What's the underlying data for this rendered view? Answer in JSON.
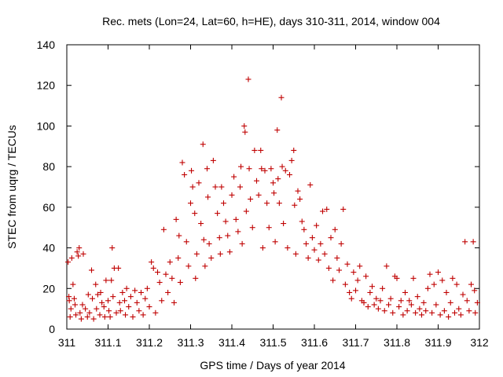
{
  "chart_data": {
    "type": "scatter",
    "title": "Rec. mets (Lon=24, Lat=60, h=HE), days 310-311, 2014, window 004",
    "xlabel": "GPS time / Days of year 2014",
    "ylabel": "STEC from uqrg / TECUs",
    "xlim": [
      311,
      312
    ],
    "ylim": [
      0,
      140
    ],
    "xticks": [
      "311",
      "311.1",
      "311.2",
      "311.3",
      "311.4",
      "311.5",
      "311.6",
      "311.7",
      "311.8",
      "311.9",
      "312"
    ],
    "yticks": [
      "0",
      "20",
      "40",
      "60",
      "80",
      "100",
      "120",
      "140"
    ],
    "grid": false,
    "legend": "none",
    "marker": "plus",
    "color": "#c00000",
    "series": [
      {
        "points": [
          [
            311.003,
            33
          ],
          [
            311.005,
            16
          ],
          [
            311.006,
            14
          ],
          [
            311.008,
            6
          ],
          [
            311.01,
            10
          ],
          [
            311.012,
            35
          ],
          [
            311.015,
            22
          ],
          [
            311.018,
            15
          ],
          [
            311.02,
            12
          ],
          [
            311.022,
            7
          ],
          [
            311.025,
            38
          ],
          [
            311.028,
            36
          ],
          [
            311.03,
            40
          ],
          [
            311.032,
            8
          ],
          [
            311.035,
            5
          ],
          [
            311.038,
            12
          ],
          [
            311.04,
            37
          ],
          [
            311.045,
            10
          ],
          [
            311.05,
            6
          ],
          [
            311.052,
            17
          ],
          [
            311.055,
            8
          ],
          [
            311.06,
            29
          ],
          [
            311.062,
            15
          ],
          [
            311.065,
            5
          ],
          [
            311.07,
            22
          ],
          [
            311.072,
            10
          ],
          [
            311.075,
            17
          ],
          [
            311.08,
            7
          ],
          [
            311.082,
            18
          ],
          [
            311.085,
            13
          ],
          [
            311.09,
            11
          ],
          [
            311.092,
            6
          ],
          [
            311.095,
            24
          ],
          [
            311.1,
            14
          ],
          [
            311.102,
            9
          ],
          [
            311.105,
            6
          ],
          [
            311.108,
            24
          ],
          [
            311.11,
            40
          ],
          [
            311.112,
            16
          ],
          [
            311.115,
            30
          ],
          [
            311.12,
            8
          ],
          [
            311.125,
            30
          ],
          [
            311.128,
            13
          ],
          [
            311.13,
            9
          ],
          [
            311.135,
            18
          ],
          [
            311.14,
            14
          ],
          [
            311.142,
            7
          ],
          [
            311.145,
            20
          ],
          [
            311.15,
            11
          ],
          [
            311.155,
            16
          ],
          [
            311.16,
            6
          ],
          [
            311.165,
            19
          ],
          [
            311.17,
            13
          ],
          [
            311.175,
            9
          ],
          [
            311.18,
            18
          ],
          [
            311.185,
            7
          ],
          [
            311.19,
            15
          ],
          [
            311.195,
            20
          ],
          [
            311.2,
            11
          ],
          [
            311.205,
            33
          ],
          [
            311.21,
            30
          ],
          [
            311.215,
            8
          ],
          [
            311.22,
            28
          ],
          [
            311.225,
            23
          ],
          [
            311.23,
            14
          ],
          [
            311.235,
            49
          ],
          [
            311.24,
            27
          ],
          [
            311.245,
            18
          ],
          [
            311.25,
            33
          ],
          [
            311.255,
            25
          ],
          [
            311.26,
            13
          ],
          [
            311.265,
            54
          ],
          [
            311.27,
            35
          ],
          [
            311.272,
            46
          ],
          [
            311.275,
            23
          ],
          [
            311.28,
            82
          ],
          [
            311.285,
            76
          ],
          [
            311.29,
            43
          ],
          [
            311.295,
            31
          ],
          [
            311.3,
            62
          ],
          [
            311.302,
            78
          ],
          [
            311.305,
            70
          ],
          [
            311.31,
            57
          ],
          [
            311.312,
            25
          ],
          [
            311.315,
            37
          ],
          [
            311.32,
            72
          ],
          [
            311.325,
            52
          ],
          [
            311.33,
            91
          ],
          [
            311.332,
            44
          ],
          [
            311.335,
            31
          ],
          [
            311.34,
            79
          ],
          [
            311.342,
            65
          ],
          [
            311.345,
            42
          ],
          [
            311.35,
            35
          ],
          [
            311.355,
            83
          ],
          [
            311.36,
            70
          ],
          [
            311.365,
            57
          ],
          [
            311.37,
            45
          ],
          [
            311.372,
            37
          ],
          [
            311.375,
            70
          ],
          [
            311.38,
            62
          ],
          [
            311.385,
            53
          ],
          [
            311.39,
            46
          ],
          [
            311.395,
            38
          ],
          [
            311.4,
            66
          ],
          [
            311.405,
            75
          ],
          [
            311.41,
            54
          ],
          [
            311.415,
            48
          ],
          [
            311.42,
            70
          ],
          [
            311.422,
            80
          ],
          [
            311.425,
            42
          ],
          [
            311.43,
            100
          ],
          [
            311.432,
            97
          ],
          [
            311.435,
            58
          ],
          [
            311.44,
            123
          ],
          [
            311.442,
            79
          ],
          [
            311.445,
            64
          ],
          [
            311.45,
            50
          ],
          [
            311.455,
            88
          ],
          [
            311.46,
            73
          ],
          [
            311.465,
            66
          ],
          [
            311.47,
            88
          ],
          [
            311.472,
            79
          ],
          [
            311.475,
            40
          ],
          [
            311.48,
            78
          ],
          [
            311.485,
            62
          ],
          [
            311.49,
            50
          ],
          [
            311.495,
            79
          ],
          [
            311.5,
            72
          ],
          [
            311.502,
            67
          ],
          [
            311.505,
            43
          ],
          [
            311.51,
            98
          ],
          [
            311.512,
            74
          ],
          [
            311.515,
            62
          ],
          [
            311.52,
            114
          ],
          [
            311.522,
            80
          ],
          [
            311.525,
            52
          ],
          [
            311.53,
            78
          ],
          [
            311.535,
            40
          ],
          [
            311.54,
            76
          ],
          [
            311.545,
            83
          ],
          [
            311.55,
            88
          ],
          [
            311.552,
            61
          ],
          [
            311.555,
            37
          ],
          [
            311.56,
            68
          ],
          [
            311.565,
            64
          ],
          [
            311.57,
            53
          ],
          [
            311.575,
            49
          ],
          [
            311.58,
            42
          ],
          [
            311.585,
            35
          ],
          [
            311.59,
            71
          ],
          [
            311.595,
            45
          ],
          [
            311.6,
            39
          ],
          [
            311.605,
            51
          ],
          [
            311.61,
            34
          ],
          [
            311.615,
            42
          ],
          [
            311.62,
            58
          ],
          [
            311.625,
            37
          ],
          [
            311.63,
            59
          ],
          [
            311.635,
            30
          ],
          [
            311.64,
            45
          ],
          [
            311.645,
            24
          ],
          [
            311.65,
            49
          ],
          [
            311.655,
            35
          ],
          [
            311.66,
            29
          ],
          [
            311.665,
            42
          ],
          [
            311.67,
            59
          ],
          [
            311.675,
            22
          ],
          [
            311.68,
            32
          ],
          [
            311.685,
            18
          ],
          [
            311.69,
            15
          ],
          [
            311.695,
            28
          ],
          [
            311.7,
            19
          ],
          [
            311.705,
            24
          ],
          [
            311.71,
            31
          ],
          [
            311.715,
            14
          ],
          [
            311.72,
            13
          ],
          [
            311.725,
            26
          ],
          [
            311.73,
            11
          ],
          [
            311.735,
            18
          ],
          [
            311.74,
            21
          ],
          [
            311.745,
            12
          ],
          [
            311.75,
            15
          ],
          [
            311.755,
            10
          ],
          [
            311.76,
            14
          ],
          [
            311.765,
            20
          ],
          [
            311.77,
            9
          ],
          [
            311.775,
            31
          ],
          [
            311.78,
            12
          ],
          [
            311.785,
            15
          ],
          [
            311.79,
            8
          ],
          [
            311.795,
            26
          ],
          [
            311.8,
            25
          ],
          [
            311.805,
            11
          ],
          [
            311.81,
            14
          ],
          [
            311.815,
            7
          ],
          [
            311.82,
            18
          ],
          [
            311.825,
            9
          ],
          [
            311.83,
            14
          ],
          [
            311.835,
            12
          ],
          [
            311.84,
            25
          ],
          [
            311.845,
            8
          ],
          [
            311.85,
            16
          ],
          [
            311.855,
            10
          ],
          [
            311.86,
            7
          ],
          [
            311.865,
            13
          ],
          [
            311.87,
            9
          ],
          [
            311.875,
            20
          ],
          [
            311.88,
            27
          ],
          [
            311.885,
            8
          ],
          [
            311.89,
            22
          ],
          [
            311.895,
            12
          ],
          [
            311.9,
            28
          ],
          [
            311.905,
            7
          ],
          [
            311.91,
            24
          ],
          [
            311.915,
            9
          ],
          [
            311.92,
            18
          ],
          [
            311.925,
            6
          ],
          [
            311.93,
            13
          ],
          [
            311.935,
            25
          ],
          [
            311.94,
            8
          ],
          [
            311.945,
            22
          ],
          [
            311.95,
            10
          ],
          [
            311.955,
            7
          ],
          [
            311.96,
            17
          ],
          [
            311.965,
            43
          ],
          [
            311.97,
            14
          ],
          [
            311.975,
            9
          ],
          [
            311.98,
            22
          ],
          [
            311.985,
            43
          ],
          [
            311.988,
            19
          ],
          [
            311.99,
            8
          ],
          [
            311.995,
            13
          ]
        ]
      }
    ]
  }
}
